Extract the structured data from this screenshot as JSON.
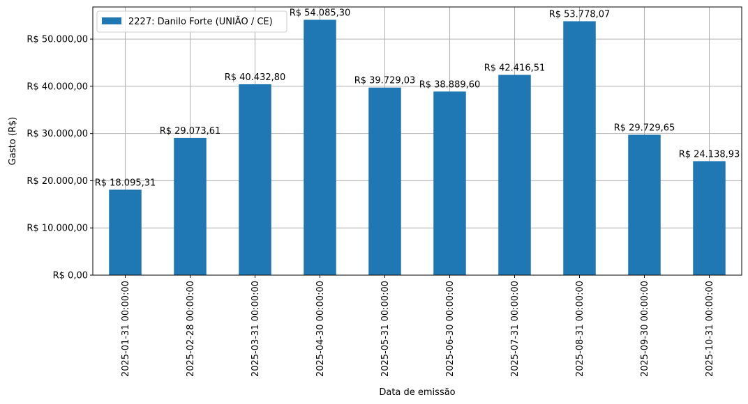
{
  "chart_data": {
    "type": "bar",
    "title": "",
    "xlabel": "Data de emissão",
    "ylabel": "Gasto (R$)",
    "categories": [
      "2025-01-31 00:00:00",
      "2025-02-28 00:00:00",
      "2025-03-31 00:00:00",
      "2025-04-30 00:00:00",
      "2025-05-31 00:00:00",
      "2025-06-30 00:00:00",
      "2025-07-31 00:00:00",
      "2025-08-31 00:00:00",
      "2025-09-30 00:00:00",
      "2025-10-31 00:00:00"
    ],
    "series": [
      {
        "name": "2227: Danilo Forte (UNIÃO / CE)",
        "color": "#1f77b4",
        "values": [
          18095.31,
          29073.61,
          40432.8,
          54085.3,
          39729.03,
          38889.6,
          42416.51,
          53778.07,
          29729.65,
          24138.93
        ],
        "labels": [
          "R$ 18.095,31",
          "R$ 29.073,61",
          "R$ 40.432,80",
          "R$ 54.085,30",
          "R$ 39.729,03",
          "R$ 38.889,60",
          "R$ 42.416,51",
          "R$ 53.778,07",
          "R$ 29.729,65",
          "R$ 24.138,93"
        ]
      }
    ],
    "ylim": [
      0,
      56800
    ],
    "yticks": [
      0,
      10000,
      20000,
      30000,
      40000,
      50000
    ],
    "ytick_labels": [
      "R$ 0,00",
      "R$ 10.000,00",
      "R$ 20.000,00",
      "R$ 30.000,00",
      "R$ 40.000,00",
      "R$ 50.000,00"
    ],
    "grid": true,
    "legend": "top-left"
  }
}
